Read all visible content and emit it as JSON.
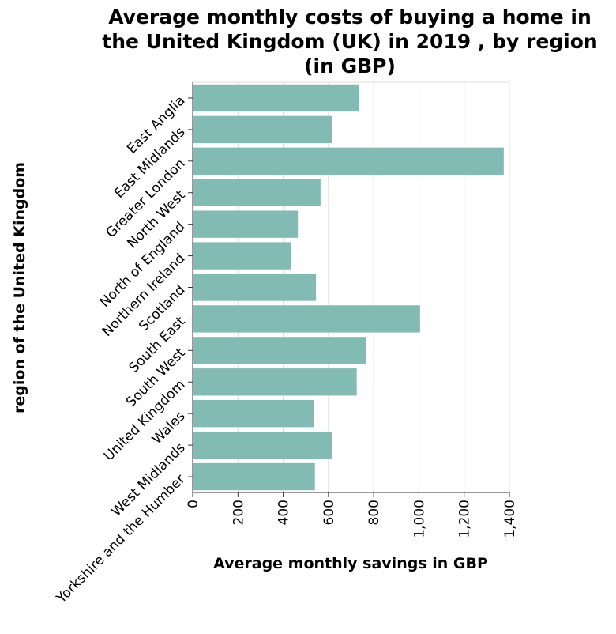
{
  "chart_data": {
    "type": "bar",
    "orientation": "horizontal",
    "title_lines": [
      "Average monthly costs of buying a home in",
      "the United Kingdom (UK) in 2019 , by region",
      "(in GBP)"
    ],
    "xlabel": "Average monthly savings in GBP",
    "ylabel": "region of the United Kingdom",
    "categories": [
      "East Anglia",
      "East Midlands",
      "Greater London",
      "North West",
      "North of England",
      "Northern Ireland",
      "Scotland",
      "South East",
      "South West",
      "United Kingdom",
      "Wales",
      "West Midlands",
      "Yorkshire and the Humber"
    ],
    "values": [
      735,
      615,
      1375,
      565,
      465,
      435,
      545,
      1005,
      765,
      725,
      535,
      615,
      540
    ],
    "xlim": [
      0,
      1400
    ],
    "xticks": [
      0,
      200,
      400,
      600,
      800,
      1000,
      1200,
      1400
    ],
    "xtick_labels": [
      "0",
      "200",
      "400",
      "600",
      "800",
      "1,000",
      "1,200",
      "1,400"
    ],
    "grid": "vertical",
    "bar_color": "#82bab4"
  }
}
